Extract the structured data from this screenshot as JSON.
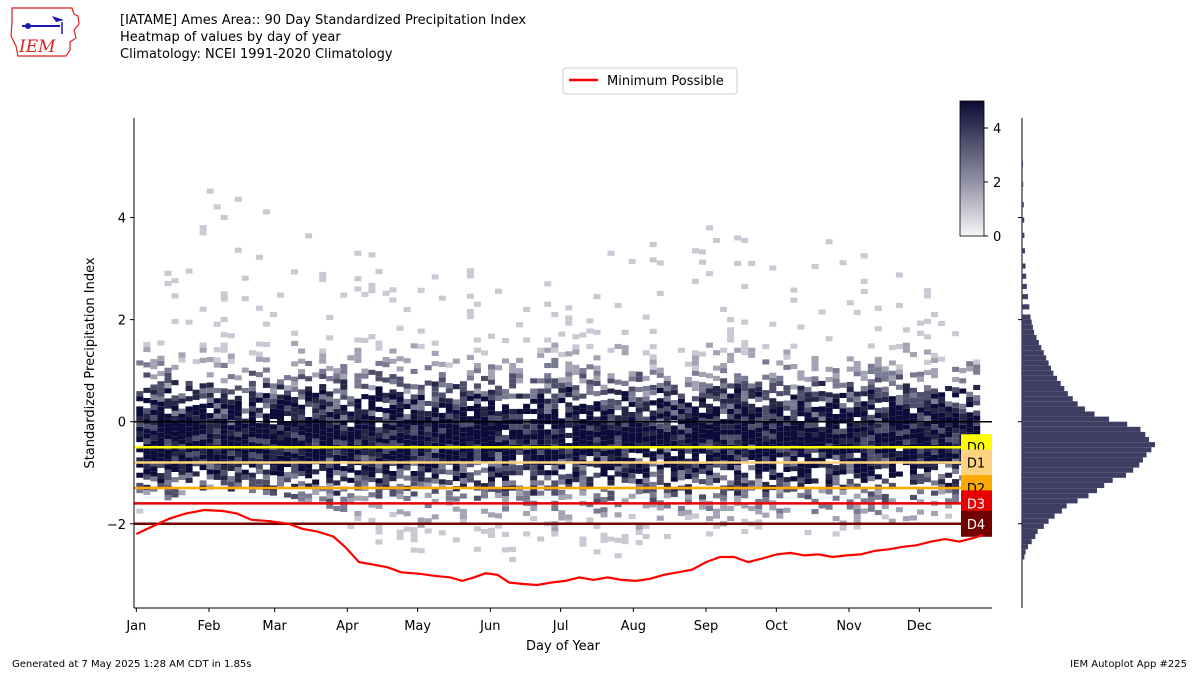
{
  "header": {
    "logo_text": "IEM",
    "title_lines": [
      "[IATAME] Ames Area:: 90 Day Standardized Precipitation Index",
      "Heatmap of values by day of year",
      "Climatology: NCEI 1991-2020 Climatology"
    ]
  },
  "footer": {
    "left": "Generated at 7 May 2025 1:28 AM CDT in 1.85s",
    "right": "IEM Autoplot App #225"
  },
  "colors": {
    "heat_dark": "#0c0c3a",
    "heat_light": "#f4f4f8",
    "hist_fill": "#3e3e63",
    "min_line": "#ff0000",
    "zero_line": "#000000"
  },
  "chart_data": {
    "type": "heatmap",
    "title": "[IATAME] Ames Area:: 90 Day Standardized Precipitation Index",
    "xlabel": "Day of Year",
    "ylabel": "Standardized Precipitation Index",
    "xlim": [
      0,
      366
    ],
    "ylim": [
      -3.65,
      5.95
    ],
    "x_ticks": [
      {
        "label": "Jan",
        "day": 1
      },
      {
        "label": "Feb",
        "day": 32
      },
      {
        "label": "Mar",
        "day": 60
      },
      {
        "label": "Apr",
        "day": 91
      },
      {
        "label": "May",
        "day": 121
      },
      {
        "label": "Jun",
        "day": 152
      },
      {
        "label": "Jul",
        "day": 182
      },
      {
        "label": "Aug",
        "day": 213
      },
      {
        "label": "Sep",
        "day": 244
      },
      {
        "label": "Oct",
        "day": 274
      },
      {
        "label": "Nov",
        "day": 305
      },
      {
        "label": "Dec",
        "day": 335
      }
    ],
    "y_ticks": [
      -2,
      0,
      2,
      4
    ],
    "colorbar": {
      "min": 0,
      "max": 5,
      "ticks": [
        0,
        2,
        4
      ]
    },
    "legend": {
      "entries": [
        "Minimum Possible"
      ],
      "placement": "top-center"
    },
    "minimum_possible": {
      "name": "Minimum Possible",
      "points": [
        [
          1,
          -2.2
        ],
        [
          8,
          -2.05
        ],
        [
          15,
          -1.9
        ],
        [
          22,
          -1.8
        ],
        [
          30,
          -1.73
        ],
        [
          38,
          -1.75
        ],
        [
          44,
          -1.8
        ],
        [
          50,
          -1.92
        ],
        [
          58,
          -1.95
        ],
        [
          66,
          -2.0
        ],
        [
          72,
          -2.1
        ],
        [
          78,
          -2.15
        ],
        [
          85,
          -2.25
        ],
        [
          90,
          -2.45
        ],
        [
          96,
          -2.75
        ],
        [
          102,
          -2.8
        ],
        [
          108,
          -2.85
        ],
        [
          114,
          -2.95
        ],
        [
          122,
          -2.98
        ],
        [
          128,
          -3.02
        ],
        [
          135,
          -3.05
        ],
        [
          140,
          -3.12
        ],
        [
          145,
          -3.05
        ],
        [
          150,
          -2.97
        ],
        [
          155,
          -3.0
        ],
        [
          160,
          -3.15
        ],
        [
          166,
          -3.18
        ],
        [
          172,
          -3.2
        ],
        [
          178,
          -3.15
        ],
        [
          184,
          -3.12
        ],
        [
          190,
          -3.05
        ],
        [
          196,
          -3.1
        ],
        [
          202,
          -3.05
        ],
        [
          208,
          -3.1
        ],
        [
          214,
          -3.12
        ],
        [
          220,
          -3.08
        ],
        [
          226,
          -3.0
        ],
        [
          232,
          -2.95
        ],
        [
          238,
          -2.9
        ],
        [
          244,
          -2.75
        ],
        [
          250,
          -2.65
        ],
        [
          256,
          -2.65
        ],
        [
          262,
          -2.75
        ],
        [
          268,
          -2.68
        ],
        [
          274,
          -2.6
        ],
        [
          280,
          -2.57
        ],
        [
          286,
          -2.62
        ],
        [
          292,
          -2.6
        ],
        [
          298,
          -2.65
        ],
        [
          304,
          -2.62
        ],
        [
          310,
          -2.6
        ],
        [
          316,
          -2.53
        ],
        [
          322,
          -2.5
        ],
        [
          328,
          -2.45
        ],
        [
          334,
          -2.42
        ],
        [
          340,
          -2.35
        ],
        [
          346,
          -2.3
        ],
        [
          352,
          -2.35
        ],
        [
          358,
          -2.28
        ],
        [
          362,
          -2.22
        ]
      ]
    },
    "drought_levels": [
      {
        "label": "D0",
        "value": -0.5,
        "color": "#ffff00",
        "text_color": "#000000"
      },
      {
        "label": "D1",
        "value": -0.8,
        "color": "#fcd37f",
        "text_color": "#000000"
      },
      {
        "label": "D2",
        "value": -1.3,
        "color": "#ffaa00",
        "text_color": "#000000"
      },
      {
        "label": "D3",
        "value": -1.6,
        "color": "#e60000",
        "text_color": "#ffffff"
      },
      {
        "label": "D4",
        "value": -2.0,
        "color": "#730000",
        "text_color": "#ffffff"
      }
    ],
    "zero_line": 0,
    "histogram": {
      "bin_width": 0.1,
      "bins": [
        [
          -2.7,
          0.02
        ],
        [
          -2.6,
          0.03
        ],
        [
          -2.5,
          0.05
        ],
        [
          -2.4,
          0.08
        ],
        [
          -2.3,
          0.11
        ],
        [
          -2.2,
          0.13
        ],
        [
          -2.1,
          0.18
        ],
        [
          -2.0,
          0.22
        ],
        [
          -1.9,
          0.27
        ],
        [
          -1.8,
          0.33
        ],
        [
          -1.7,
          0.37
        ],
        [
          -1.6,
          0.46
        ],
        [
          -1.5,
          0.55
        ],
        [
          -1.4,
          0.62
        ],
        [
          -1.3,
          0.68
        ],
        [
          -1.2,
          0.75
        ],
        [
          -1.1,
          0.86
        ],
        [
          -1.0,
          0.92
        ],
        [
          -0.9,
          0.97
        ],
        [
          -0.8,
          1.0
        ],
        [
          -0.7,
          1.03
        ],
        [
          -0.6,
          1.07
        ],
        [
          -0.5,
          1.1
        ],
        [
          -0.4,
          1.05
        ],
        [
          -0.3,
          1.02
        ],
        [
          -0.2,
          0.98
        ],
        [
          -0.1,
          0.87
        ],
        [
          0.0,
          0.72
        ],
        [
          0.1,
          0.6
        ],
        [
          0.2,
          0.52
        ],
        [
          0.3,
          0.46
        ],
        [
          0.4,
          0.42
        ],
        [
          0.5,
          0.38
        ],
        [
          0.6,
          0.35
        ],
        [
          0.7,
          0.32
        ],
        [
          0.8,
          0.29
        ],
        [
          0.9,
          0.26
        ],
        [
          1.0,
          0.24
        ],
        [
          1.1,
          0.22
        ],
        [
          1.2,
          0.2
        ],
        [
          1.3,
          0.18
        ],
        [
          1.4,
          0.16
        ],
        [
          1.5,
          0.14
        ],
        [
          1.6,
          0.12
        ],
        [
          1.7,
          0.1
        ],
        [
          1.8,
          0.09
        ],
        [
          1.9,
          0.08
        ],
        [
          2.0,
          0.07
        ],
        [
          2.2,
          0.06
        ],
        [
          2.4,
          0.05
        ],
        [
          2.6,
          0.04
        ],
        [
          2.8,
          0.035
        ],
        [
          3.0,
          0.03
        ],
        [
          3.3,
          0.025
        ],
        [
          3.6,
          0.02
        ],
        [
          3.9,
          0.018
        ],
        [
          4.2,
          0.015
        ],
        [
          4.6,
          0.01
        ],
        [
          5.0,
          0.008
        ],
        [
          5.4,
          0.005
        ]
      ]
    }
  }
}
